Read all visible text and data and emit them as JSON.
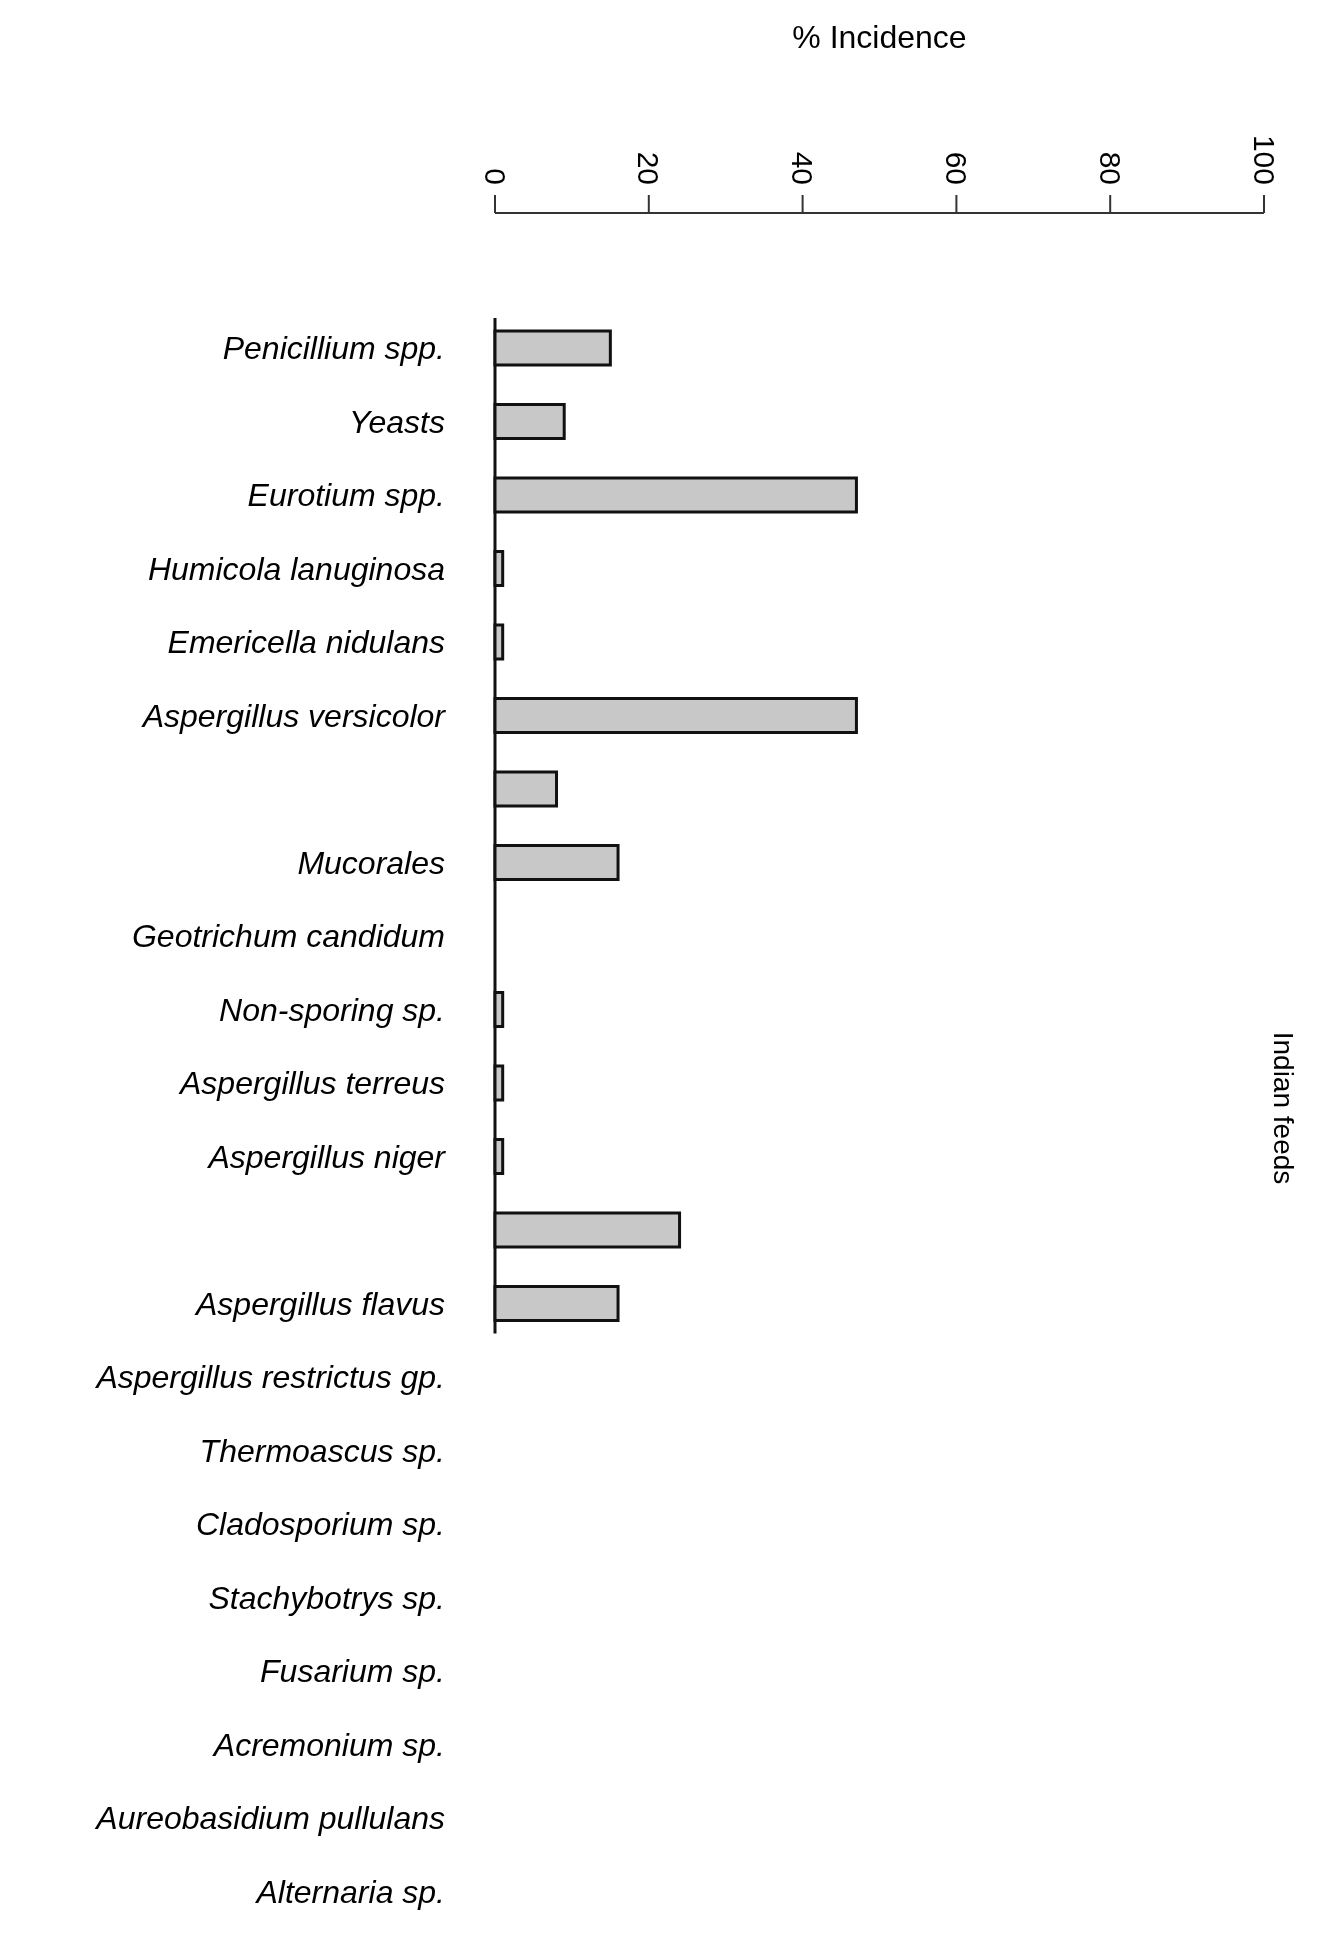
{
  "chart_data": {
    "type": "bar",
    "orientation": "horizontal",
    "xlabel": "% Incidence",
    "ylabel": "Indian feeds",
    "categories": [
      "Penicillium spp.",
      "Yeasts",
      "Eurotium spp.",
      "Humicola lanuginosa",
      "Emericella nidulans",
      "Aspergillus versicolor",
      null,
      "Mucorales",
      "Geotrichum candidum",
      "Non-sporing sp.",
      "Aspergillus terreus",
      "Aspergillus niger",
      null,
      "Aspergillus flavus",
      "Aspergillus restrictus gp.",
      "Thermoascus sp.",
      "Cladosporium sp.",
      "Stachybotrys sp.",
      "Fusarium sp.",
      "Acremonium sp.",
      "Aureobasidium pullulans",
      "Alternaria sp."
    ],
    "values": [
      15,
      9,
      47,
      1,
      1,
      47,
      8,
      16,
      null,
      1,
      1,
      1,
      24,
      16,
      null,
      null,
      null,
      null,
      null,
      null,
      null,
      null
    ],
    "color": "#c8c8c8",
    "xlim": [
      0,
      100
    ],
    "xticks": [
      0,
      20,
      40,
      60,
      80,
      100
    ],
    "grid": false
  }
}
